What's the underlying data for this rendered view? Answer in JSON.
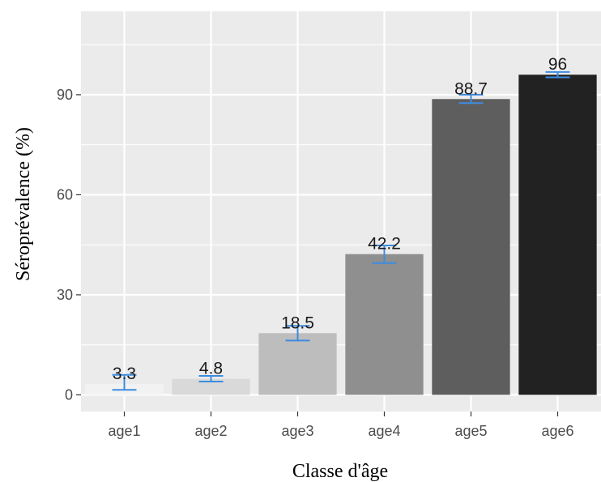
{
  "chart_data": {
    "type": "bar",
    "categories": [
      "age1",
      "age2",
      "age3",
      "age4",
      "age5",
      "age6"
    ],
    "values": [
      3.3,
      4.8,
      18.5,
      42.2,
      88.7,
      96
    ],
    "value_labels": [
      "3.3",
      "4.8",
      "18.5",
      "42.2",
      "88.7",
      "96"
    ],
    "error_bars": [
      {
        "low": 1.5,
        "high": 6.0
      },
      {
        "low": 4.0,
        "high": 5.7
      },
      {
        "low": 16.3,
        "high": 20.7
      },
      {
        "low": 39.5,
        "high": 44.8
      },
      {
        "low": 87.5,
        "high": 90.0
      },
      {
        "low": 95.2,
        "high": 96.8
      }
    ],
    "bar_colors": [
      "#f2f2f2",
      "#d9d9d9",
      "#bdbdbd",
      "#8f8f8f",
      "#5e5e5e",
      "#222222"
    ],
    "error_bar_color": "#3c8ce0",
    "panel_background": "#ebebeb",
    "gridline_color": "#ffffff",
    "xlabel": "Classe d'âge",
    "ylabel": "Séroprévalence (%)",
    "ylim": [
      -5,
      115
    ],
    "yticks": [
      0,
      30,
      60,
      90
    ],
    "grid": true
  }
}
